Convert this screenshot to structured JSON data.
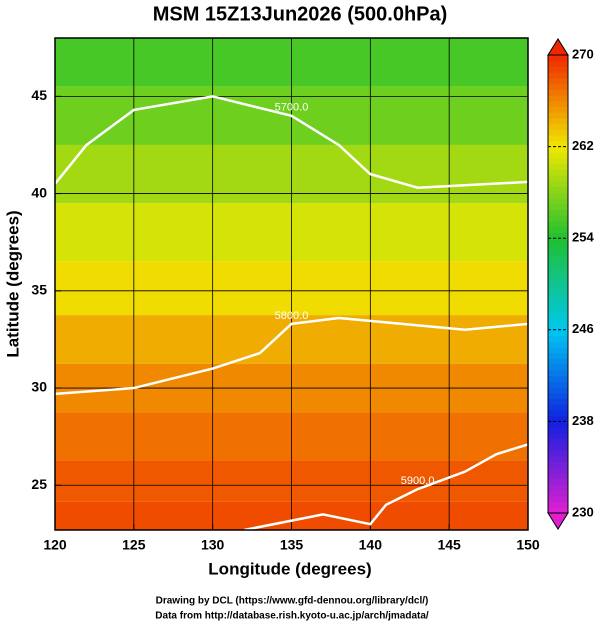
{
  "chart_data": {
    "type": "map",
    "title": "MSM 15Z13Jun2026 (500.0hPa)",
    "xlabel": "Longitude (degrees)",
    "ylabel": "Latitude  (degrees)",
    "xlim": [
      120,
      150
    ],
    "xticks": [
      120,
      125,
      130,
      135,
      140,
      145,
      150
    ],
    "ylim": [
      22.7,
      48
    ],
    "yticks": [
      25,
      30,
      35,
      40,
      45
    ],
    "grid": true,
    "field_lat": [
      47,
      44,
      41,
      38,
      35,
      32.5,
      30,
      27.5,
      25,
      23.3
    ],
    "field_values": [
      255.5,
      257,
      259,
      261,
      262.5,
      264.5,
      266,
      267,
      268,
      268.5
    ],
    "colorbar_lim": [
      230,
      270
    ],
    "colorbar_ticks": [
      230,
      238,
      246,
      254,
      262,
      270
    ],
    "colormap": [
      "#e020d0",
      "#1020e0",
      "#00c8f0",
      "#20c030",
      "#f0e800",
      "#f02800"
    ],
    "contours": [
      {
        "label": "5700.0",
        "lon": [
          120,
          122,
          125,
          130,
          135,
          138,
          140,
          143,
          150
        ],
        "lat": [
          40.5,
          42.5,
          44.3,
          45,
          44,
          42.5,
          41,
          40.3,
          40.6
        ]
      },
      {
        "label": "5800.0",
        "lon": [
          120,
          125,
          130,
          133,
          135,
          138,
          142,
          146,
          150
        ],
        "lat": [
          29.7,
          30,
          31,
          31.8,
          33.3,
          33.6,
          33.3,
          33,
          33.3
        ]
      },
      {
        "label": "5900.0",
        "lon": [
          132,
          137,
          140,
          141,
          143,
          146,
          148,
          150
        ],
        "lat": [
          22.7,
          23.5,
          23,
          24,
          24.8,
          25.7,
          26.6,
          27.1
        ]
      }
    ],
    "footer": [
      "Drawing by DCL (https://www.gfd-dennou.org/library/dcl/)",
      "Data from http://database.rish.kyoto-u.ac.jp/arch/jmadata/"
    ]
  }
}
